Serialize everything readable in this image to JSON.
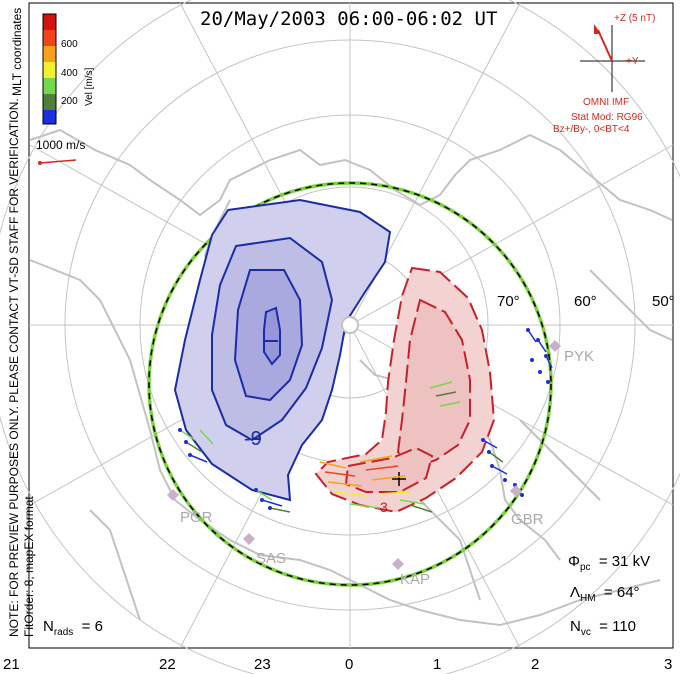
{
  "title": "20/May/2003 06:00-06:02 UT",
  "color_scale": {
    "label": "Vel [m/s]",
    "ticks": [
      "600",
      "400",
      "200"
    ],
    "colors": [
      "#1b2fe0",
      "#4f7f3a",
      "#74d84a",
      "#f2f12b",
      "#f7a21b",
      "#f2421a",
      "#d3110f"
    ]
  },
  "coordinate_label": "MLT coordinates",
  "vector_scale_label": "1000 m/s",
  "side_notes": {
    "line1": "NOTE: FOR PREVIEW PURPOSES ONLY. PLEASE CONTACT VT-SD STAFF FOR VERIFICATION.",
    "line2": "FitOrder: 8,  mapEX format"
  },
  "imf": {
    "axis_z": "+Z (5 nT)",
    "axis_y": "+Y",
    "source": "OMNI IMF",
    "stat_model": "Stat Mod: RG96",
    "condition": "Bz+/By-, 0<BT<4",
    "axis_color": "#111111",
    "vector_color": "#d42a1e"
  },
  "latitude_labels": [
    "70°",
    "60°",
    "50°"
  ],
  "radar_sites": [
    "PYK",
    "PGR",
    "SAS",
    "KAP",
    "GBR"
  ],
  "contour_labels": {
    "negative": "-9",
    "positive": "3"
  },
  "mlt_axis": [
    "21",
    "22",
    "23",
    "0",
    "1",
    "2",
    "3"
  ],
  "stats": {
    "cpcp": "31 kV",
    "hm_boundary": "64°",
    "n_vectors": "110",
    "n_radars": "6"
  },
  "colors": {
    "dawn_cell_fill": "#c9c9ea",
    "dusk_cell_fill": "#f3d2d2",
    "dawn_contour": "#1a2ca8",
    "dusk_contour": "#c8202a",
    "boundary_green": "#7bd13a",
    "coastline": "#c2c2c2"
  }
}
